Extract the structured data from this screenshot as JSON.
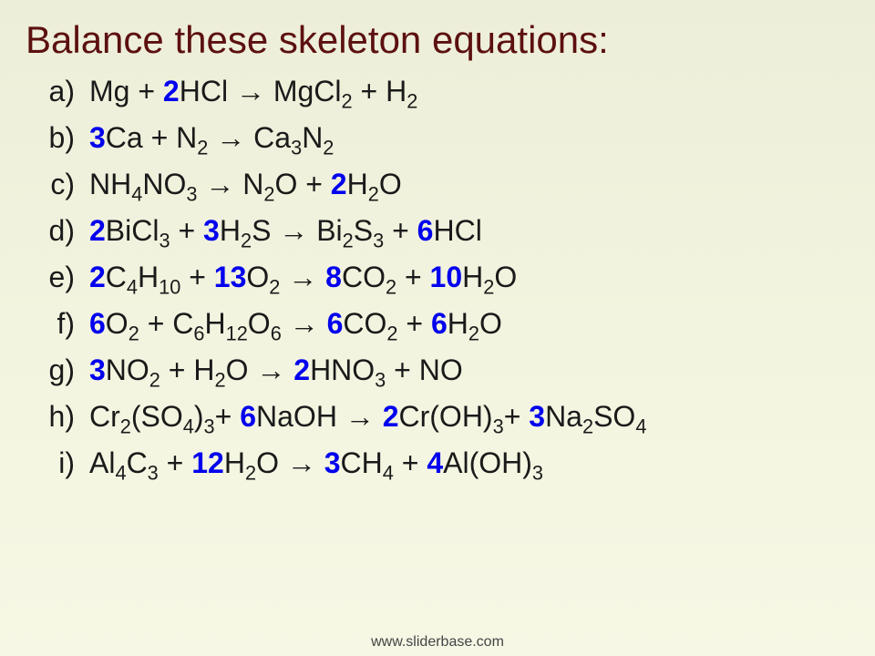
{
  "title": "Balance these skeleton equations:",
  "footer": "www.sliderbase.com",
  "title_color": "#5c1010",
  "coef_color": "#0000ee",
  "text_color": "#1a1a1a",
  "background_top": "#edeed9",
  "background_bottom": "#f6f8e5",
  "title_fontsize": 42,
  "body_fontsize": 32,
  "arrow": "→",
  "equations": [
    {
      "label": "a)",
      "tokens": [
        {
          "t": "txt",
          "v": "Mg + "
        },
        {
          "t": "coef",
          "v": "2"
        },
        {
          "t": "txt",
          "v": "HCl "
        },
        {
          "t": "arrow"
        },
        {
          "t": "txt",
          "v": " MgCl"
        },
        {
          "t": "sub",
          "v": "2"
        },
        {
          "t": "txt",
          "v": " + H"
        },
        {
          "t": "sub",
          "v": "2"
        }
      ]
    },
    {
      "label": "b)",
      "tokens": [
        {
          "t": "coef",
          "v": "3"
        },
        {
          "t": "txt",
          "v": "Ca + N"
        },
        {
          "t": "sub",
          "v": "2"
        },
        {
          "t": "txt",
          "v": " "
        },
        {
          "t": "arrow"
        },
        {
          "t": "txt",
          "v": " Ca"
        },
        {
          "t": "sub",
          "v": "3"
        },
        {
          "t": "txt",
          "v": "N"
        },
        {
          "t": "sub",
          "v": "2"
        }
      ]
    },
    {
      "label": "c)",
      "tokens": [
        {
          "t": "txt",
          "v": "NH"
        },
        {
          "t": "sub",
          "v": "4"
        },
        {
          "t": "txt",
          "v": "NO"
        },
        {
          "t": "sub",
          "v": "3"
        },
        {
          "t": "txt",
          "v": " "
        },
        {
          "t": "arrow"
        },
        {
          "t": "txt",
          "v": " N"
        },
        {
          "t": "sub",
          "v": "2"
        },
        {
          "t": "txt",
          "v": "O + "
        },
        {
          "t": "coef",
          "v": "2"
        },
        {
          "t": "txt",
          "v": "H"
        },
        {
          "t": "sub",
          "v": "2"
        },
        {
          "t": "txt",
          "v": "O"
        }
      ]
    },
    {
      "label": "d)",
      "tokens": [
        {
          "t": "coef",
          "v": "2"
        },
        {
          "t": "txt",
          "v": "BiCl"
        },
        {
          "t": "sub",
          "v": "3"
        },
        {
          "t": "txt",
          "v": " + "
        },
        {
          "t": "coef",
          "v": "3"
        },
        {
          "t": "txt",
          "v": "H"
        },
        {
          "t": "sub",
          "v": "2"
        },
        {
          "t": "txt",
          "v": "S "
        },
        {
          "t": "arrow"
        },
        {
          "t": "txt",
          "v": " Bi"
        },
        {
          "t": "sub",
          "v": "2"
        },
        {
          "t": "txt",
          "v": "S"
        },
        {
          "t": "sub",
          "v": "3"
        },
        {
          "t": "txt",
          "v": " + "
        },
        {
          "t": "coef",
          "v": "6"
        },
        {
          "t": "txt",
          "v": "HCl"
        }
      ]
    },
    {
      "label": "e)",
      "tokens": [
        {
          "t": "coef",
          "v": "2"
        },
        {
          "t": "txt",
          "v": "C"
        },
        {
          "t": "sub",
          "v": "4"
        },
        {
          "t": "txt",
          "v": "H"
        },
        {
          "t": "sub",
          "v": "10"
        },
        {
          "t": "txt",
          "v": " + "
        },
        {
          "t": "coef",
          "v": "13"
        },
        {
          "t": "txt",
          "v": "O"
        },
        {
          "t": "sub",
          "v": "2"
        },
        {
          "t": "txt",
          "v": " "
        },
        {
          "t": "arrow"
        },
        {
          "t": "txt",
          "v": " "
        },
        {
          "t": "coef",
          "v": "8"
        },
        {
          "t": "txt",
          "v": "CO"
        },
        {
          "t": "sub",
          "v": "2"
        },
        {
          "t": "txt",
          "v": " + "
        },
        {
          "t": "coef",
          "v": "10"
        },
        {
          "t": "txt",
          "v": "H"
        },
        {
          "t": "sub",
          "v": "2"
        },
        {
          "t": "txt",
          "v": "O"
        }
      ]
    },
    {
      "label": "f)",
      "tokens": [
        {
          "t": "coef",
          "v": "6"
        },
        {
          "t": "txt",
          "v": "O"
        },
        {
          "t": "sub",
          "v": "2"
        },
        {
          "t": "txt",
          "v": " + C"
        },
        {
          "t": "sub",
          "v": "6"
        },
        {
          "t": "txt",
          "v": "H"
        },
        {
          "t": "sub",
          "v": "12"
        },
        {
          "t": "txt",
          "v": "O"
        },
        {
          "t": "sub",
          "v": "6"
        },
        {
          "t": "txt",
          "v": " "
        },
        {
          "t": "arrow"
        },
        {
          "t": "txt",
          "v": " "
        },
        {
          "t": "coef",
          "v": "6"
        },
        {
          "t": "txt",
          "v": "CO"
        },
        {
          "t": "sub",
          "v": "2"
        },
        {
          "t": "txt",
          "v": " + "
        },
        {
          "t": "coef",
          "v": "6"
        },
        {
          "t": "txt",
          "v": "H"
        },
        {
          "t": "sub",
          "v": "2"
        },
        {
          "t": "txt",
          "v": "O"
        }
      ]
    },
    {
      "label": "g)",
      "tokens": [
        {
          "t": "coef",
          "v": "3"
        },
        {
          "t": "txt",
          "v": "NO"
        },
        {
          "t": "sub",
          "v": "2"
        },
        {
          "t": "txt",
          "v": " + H"
        },
        {
          "t": "sub",
          "v": "2"
        },
        {
          "t": "txt",
          "v": "O "
        },
        {
          "t": "arrow"
        },
        {
          "t": "txt",
          "v": " "
        },
        {
          "t": "coef",
          "v": "2"
        },
        {
          "t": "txt",
          "v": "HNO"
        },
        {
          "t": "sub",
          "v": "3"
        },
        {
          "t": "txt",
          "v": " + NO"
        }
      ]
    },
    {
      "label": "h)",
      "tokens": [
        {
          "t": "txt",
          "v": "Cr"
        },
        {
          "t": "sub",
          "v": "2"
        },
        {
          "t": "txt",
          "v": "(SO"
        },
        {
          "t": "sub",
          "v": "4"
        },
        {
          "t": "txt",
          "v": ")"
        },
        {
          "t": "sub",
          "v": "3"
        },
        {
          "t": "txt",
          "v": "+ "
        },
        {
          "t": "coef",
          "v": "6"
        },
        {
          "t": "txt",
          "v": "NaOH "
        },
        {
          "t": "arrow"
        },
        {
          "t": "txt",
          "v": " "
        },
        {
          "t": "coef",
          "v": "2"
        },
        {
          "t": "txt",
          "v": "Cr(OH)"
        },
        {
          "t": "sub",
          "v": "3"
        },
        {
          "t": "txt",
          "v": "+ "
        },
        {
          "t": "coef",
          "v": "3"
        },
        {
          "t": "txt",
          "v": "Na"
        },
        {
          "t": "sub",
          "v": "2"
        },
        {
          "t": "txt",
          "v": "SO"
        },
        {
          "t": "sub",
          "v": "4"
        }
      ]
    },
    {
      "label": "i)",
      "tokens": [
        {
          "t": "txt",
          "v": "Al"
        },
        {
          "t": "sub",
          "v": "4"
        },
        {
          "t": "txt",
          "v": "C"
        },
        {
          "t": "sub",
          "v": "3"
        },
        {
          "t": "txt",
          "v": " + "
        },
        {
          "t": "coef",
          "v": "12"
        },
        {
          "t": "txt",
          "v": "H"
        },
        {
          "t": "sub",
          "v": "2"
        },
        {
          "t": "txt",
          "v": "O "
        },
        {
          "t": "arrow"
        },
        {
          "t": "txt",
          "v": " "
        },
        {
          "t": "coef",
          "v": "3"
        },
        {
          "t": "txt",
          "v": "CH"
        },
        {
          "t": "sub",
          "v": "4"
        },
        {
          "t": "txt",
          "v": " + "
        },
        {
          "t": "coef",
          "v": "4"
        },
        {
          "t": "txt",
          "v": "Al(OH)"
        },
        {
          "t": "sub",
          "v": "3"
        }
      ]
    }
  ]
}
